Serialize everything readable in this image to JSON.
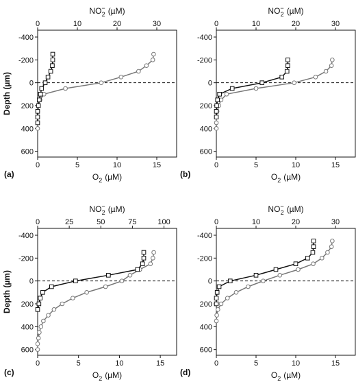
{
  "figure": {
    "ylabel": "Depth (µm)",
    "top_label_base": "NO",
    "top_label_sub": "2",
    "top_label_sup": "−",
    "top_label_unit": "(µM)",
    "bottom_label_base": "O",
    "bottom_label_sub": "2",
    "bottom_label_unit": "(µM)"
  },
  "colors": {
    "o2": "#777777",
    "no2": "#111111",
    "axis": "#111111"
  },
  "chart_data": [
    {
      "type": "line",
      "panel_label": "(a)",
      "ylim": [
        650,
        -460
      ],
      "yticks": [
        -400,
        -200,
        0,
        200,
        400,
        600
      ],
      "o2_xlim": [
        0,
        17.5
      ],
      "o2_xticks": [
        0,
        5,
        10,
        15
      ],
      "no2_xlim": [
        0,
        35
      ],
      "no2_xticks": [
        0,
        10,
        20,
        30
      ],
      "zero_line": "dashed",
      "series": [
        {
          "marker": "circle",
          "axis": "bottom",
          "x": [
            14.6,
            14.5,
            13.7,
            12.7,
            10.5,
            8.0,
            3.5,
            0.8,
            0.3,
            0.1,
            0,
            0,
            0,
            0
          ],
          "y": [
            -250,
            -200,
            -150,
            -100,
            -50,
            0,
            50,
            100,
            150,
            200,
            250,
            300,
            350,
            400
          ]
        },
        {
          "marker": "square",
          "axis": "top",
          "x": [
            3.8,
            3.8,
            3.7,
            3.3,
            2.6,
            1.9,
            1.0,
            0.7,
            0.4,
            0.2,
            0,
            0,
            0
          ],
          "y": [
            -250,
            -200,
            -150,
            -100,
            -50,
            0,
            50,
            100,
            150,
            200,
            250,
            300,
            350
          ]
        }
      ]
    },
    {
      "type": "line",
      "panel_label": "(b)",
      "ylim": [
        650,
        -460
      ],
      "yticks": [
        -400,
        -200,
        0,
        200,
        400,
        600
      ],
      "o2_xlim": [
        0,
        17.5
      ],
      "o2_xticks": [
        0,
        5,
        10,
        15
      ],
      "no2_xlim": [
        0,
        35
      ],
      "no2_xticks": [
        0,
        10,
        20,
        30
      ],
      "zero_line": "dashed",
      "series": [
        {
          "marker": "circle",
          "axis": "bottom",
          "x": [
            14.6,
            14.5,
            13.8,
            12.5,
            9.8,
            5.0,
            1.3,
            0.6,
            0.3,
            0.1,
            0,
            0,
            0
          ],
          "y": [
            -200,
            -150,
            -100,
            -50,
            0,
            50,
            100,
            150,
            200,
            250,
            300,
            350,
            400
          ]
        },
        {
          "marker": "square",
          "axis": "top",
          "x": [
            18.0,
            18.0,
            17.8,
            16.5,
            11.5,
            4.0,
            0.8,
            0.3,
            0.1,
            0,
            0
          ],
          "y": [
            -200,
            -150,
            -100,
            -50,
            0,
            50,
            100,
            150,
            200,
            250,
            300
          ]
        }
      ]
    },
    {
      "type": "line",
      "panel_label": "(c)",
      "ylim": [
        650,
        -460
      ],
      "yticks": [
        -400,
        -200,
        0,
        200,
        400,
        600
      ],
      "o2_xlim": [
        0,
        17
      ],
      "o2_xticks": [
        0,
        5,
        10,
        15
      ],
      "no2_xlim": [
        0,
        110
      ],
      "no2_xticks": [
        0,
        25,
        50,
        75,
        100
      ],
      "zero_line": "dashed",
      "series": [
        {
          "marker": "circle",
          "axis": "bottom",
          "x": [
            14.2,
            14.1,
            13.8,
            12.5,
            11.3,
            10.3,
            8.3,
            6.0,
            4.3,
            3.0,
            2.0,
            1.3,
            0.7,
            0.4,
            0.2,
            0.1,
            0,
            0
          ],
          "y": [
            -250,
            -200,
            -150,
            -100,
            -50,
            0,
            50,
            100,
            150,
            200,
            250,
            300,
            350,
            400,
            450,
            500,
            550,
            600
          ]
        },
        {
          "marker": "square",
          "axis": "top",
          "x": [
            84,
            84,
            83,
            79,
            56,
            30,
            11,
            4,
            2,
            1,
            0
          ],
          "y": [
            -250,
            -200,
            -150,
            -100,
            -50,
            0,
            50,
            100,
            150,
            200,
            250
          ]
        }
      ]
    },
    {
      "type": "line",
      "panel_label": "(d)",
      "ylim": [
        650,
        -460
      ],
      "yticks": [
        -400,
        -200,
        0,
        200,
        400,
        600
      ],
      "o2_xlim": [
        0,
        17.5
      ],
      "o2_xticks": [
        0,
        5,
        10,
        15
      ],
      "no2_xlim": [
        0,
        35
      ],
      "no2_xticks": [
        0,
        10,
        20,
        30
      ],
      "zero_line": "dashed",
      "series": [
        {
          "marker": "circle",
          "axis": "bottom",
          "x": [
            14.6,
            14.5,
            14.0,
            13.3,
            12.2,
            10.3,
            8.0,
            5.9,
            4.0,
            2.5,
            1.4,
            0.6,
            0.2,
            0.05,
            0
          ],
          "y": [
            -350,
            -300,
            -250,
            -200,
            -150,
            -100,
            -50,
            0,
            50,
            100,
            150,
            200,
            250,
            300,
            350
          ]
        },
        {
          "marker": "square",
          "axis": "top",
          "x": [
            24.5,
            24.5,
            24.3,
            23.0,
            20.0,
            15.0,
            10.0,
            3.5,
            0.7,
            0.2,
            0,
            0
          ],
          "y": [
            -350,
            -300,
            -250,
            -200,
            -150,
            -100,
            -50,
            0,
            50,
            100,
            150,
            200
          ]
        }
      ]
    }
  ]
}
